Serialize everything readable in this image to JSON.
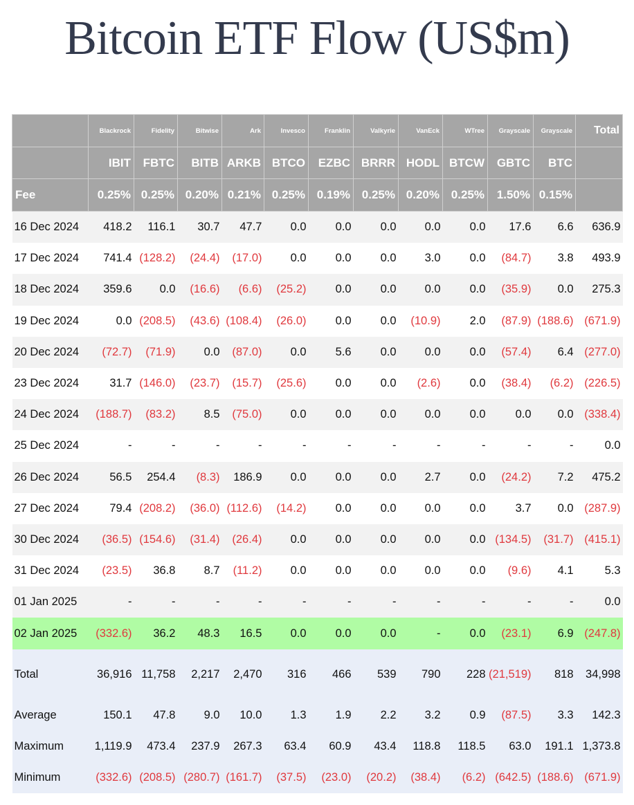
{
  "title": "Bitcoin ETF Flow (US$m)",
  "issuers": [
    "Blackrock",
    "Fidelity",
    "Bitwise",
    "Ark",
    "Invesco",
    "Franklin",
    "Valkyrie",
    "VanEck",
    "WTree",
    "Grayscale",
    "Grayscale"
  ],
  "total_label": "Total",
  "tickers": [
    "IBIT",
    "FBTC",
    "BITB",
    "ARKB",
    "BTCO",
    "EZBC",
    "BRRR",
    "HODL",
    "BTCW",
    "GBTC",
    "BTC"
  ],
  "fee_label": "Fee",
  "fees": [
    "0.25%",
    "0.25%",
    "0.20%",
    "0.21%",
    "0.25%",
    "0.19%",
    "0.25%",
    "0.20%",
    "0.25%",
    "1.50%",
    "0.15%"
  ],
  "rows": [
    {
      "date": "16 Dec 2024",
      "values": [
        "418.2",
        "116.1",
        "30.7",
        "47.7",
        "0.0",
        "0.0",
        "0.0",
        "0.0",
        "0.0",
        "17.6",
        "6.6",
        "636.9"
      ]
    },
    {
      "date": "17 Dec 2024",
      "values": [
        "741.4",
        "(128.2)",
        "(24.4)",
        "(17.0)",
        "0.0",
        "0.0",
        "0.0",
        "3.0",
        "0.0",
        "(84.7)",
        "3.8",
        "493.9"
      ]
    },
    {
      "date": "18 Dec 2024",
      "values": [
        "359.6",
        "0.0",
        "(16.6)",
        "(6.6)",
        "(25.2)",
        "0.0",
        "0.0",
        "0.0",
        "0.0",
        "(35.9)",
        "0.0",
        "275.3"
      ]
    },
    {
      "date": "19 Dec 2024",
      "values": [
        "0.0",
        "(208.5)",
        "(43.6)",
        "(108.4)",
        "(26.0)",
        "0.0",
        "0.0",
        "(10.9)",
        "2.0",
        "(87.9)",
        "(188.6)",
        "(671.9)"
      ]
    },
    {
      "date": "20 Dec 2024",
      "values": [
        "(72.7)",
        "(71.9)",
        "0.0",
        "(87.0)",
        "0.0",
        "5.6",
        "0.0",
        "0.0",
        "0.0",
        "(57.4)",
        "6.4",
        "(277.0)"
      ]
    },
    {
      "date": "23 Dec 2024",
      "values": [
        "31.7",
        "(146.0)",
        "(23.7)",
        "(15.7)",
        "(25.6)",
        "0.0",
        "0.0",
        "(2.6)",
        "0.0",
        "(38.4)",
        "(6.2)",
        "(226.5)"
      ]
    },
    {
      "date": "24 Dec 2024",
      "values": [
        "(188.7)",
        "(83.2)",
        "8.5",
        "(75.0)",
        "0.0",
        "0.0",
        "0.0",
        "0.0",
        "0.0",
        "0.0",
        "0.0",
        "(338.4)"
      ]
    },
    {
      "date": "25 Dec 2024",
      "values": [
        "-",
        "-",
        "-",
        "-",
        "-",
        "-",
        "-",
        "-",
        "-",
        "-",
        "-",
        "0.0"
      ]
    },
    {
      "date": "26 Dec 2024",
      "values": [
        "56.5",
        "254.4",
        "(8.3)",
        "186.9",
        "0.0",
        "0.0",
        "0.0",
        "2.7",
        "0.0",
        "(24.2)",
        "7.2",
        "475.2"
      ]
    },
    {
      "date": "27 Dec 2024",
      "values": [
        "79.4",
        "(208.2)",
        "(36.0)",
        "(112.6)",
        "(14.2)",
        "0.0",
        "0.0",
        "0.0",
        "0.0",
        "3.7",
        "0.0",
        "(287.9)"
      ]
    },
    {
      "date": "30 Dec 2024",
      "values": [
        "(36.5)",
        "(154.6)",
        "(31.4)",
        "(26.4)",
        "0.0",
        "0.0",
        "0.0",
        "0.0",
        "0.0",
        "(134.5)",
        "(31.7)",
        "(415.1)"
      ]
    },
    {
      "date": "31 Dec 2024",
      "values": [
        "(23.5)",
        "36.8",
        "8.7",
        "(11.2)",
        "0.0",
        "0.0",
        "0.0",
        "0.0",
        "0.0",
        "(9.6)",
        "4.1",
        "5.3"
      ]
    },
    {
      "date": "01 Jan 2025",
      "values": [
        "-",
        "-",
        "-",
        "-",
        "-",
        "-",
        "-",
        "-",
        "-",
        "-",
        "-",
        "0.0"
      ]
    },
    {
      "date": "02 Jan 2025",
      "highlight": true,
      "values": [
        "(332.6)",
        "36.2",
        "48.3",
        "16.5",
        "0.0",
        "0.0",
        "0.0",
        "-",
        "0.0",
        "(23.1)",
        "6.9",
        "(247.8)"
      ]
    }
  ],
  "summary": [
    {
      "label": "Total",
      "values": [
        "36,916",
        "11,758",
        "2,217",
        "2,470",
        "316",
        "466",
        "539",
        "790",
        "228",
        "(21,519)",
        "818",
        "34,998"
      ]
    },
    {
      "label": "Average",
      "values": [
        "150.1",
        "47.8",
        "9.0",
        "10.0",
        "1.3",
        "1.9",
        "2.2",
        "3.2",
        "0.9",
        "(87.5)",
        "3.3",
        "142.3"
      ]
    },
    {
      "label": "Maximum",
      "values": [
        "1,119.9",
        "473.4",
        "237.9",
        "267.3",
        "63.4",
        "60.9",
        "43.4",
        "118.8",
        "118.5",
        "63.0",
        "191.1",
        "1,373.8"
      ]
    },
    {
      "label": "Minimum",
      "values": [
        "(332.6)",
        "(208.5)",
        "(280.7)",
        "(161.7)",
        "(37.5)",
        "(23.0)",
        "(20.2)",
        "(38.4)",
        "(6.2)",
        "(642.5)",
        "(188.6)",
        "(671.9)"
      ]
    }
  ],
  "colors": {
    "negative": "#e0393e",
    "header_bg": "#a6a6a6",
    "highlight_row": "#b0fca4",
    "summary_bg": "#e9eef8",
    "title": "#333a4d"
  }
}
